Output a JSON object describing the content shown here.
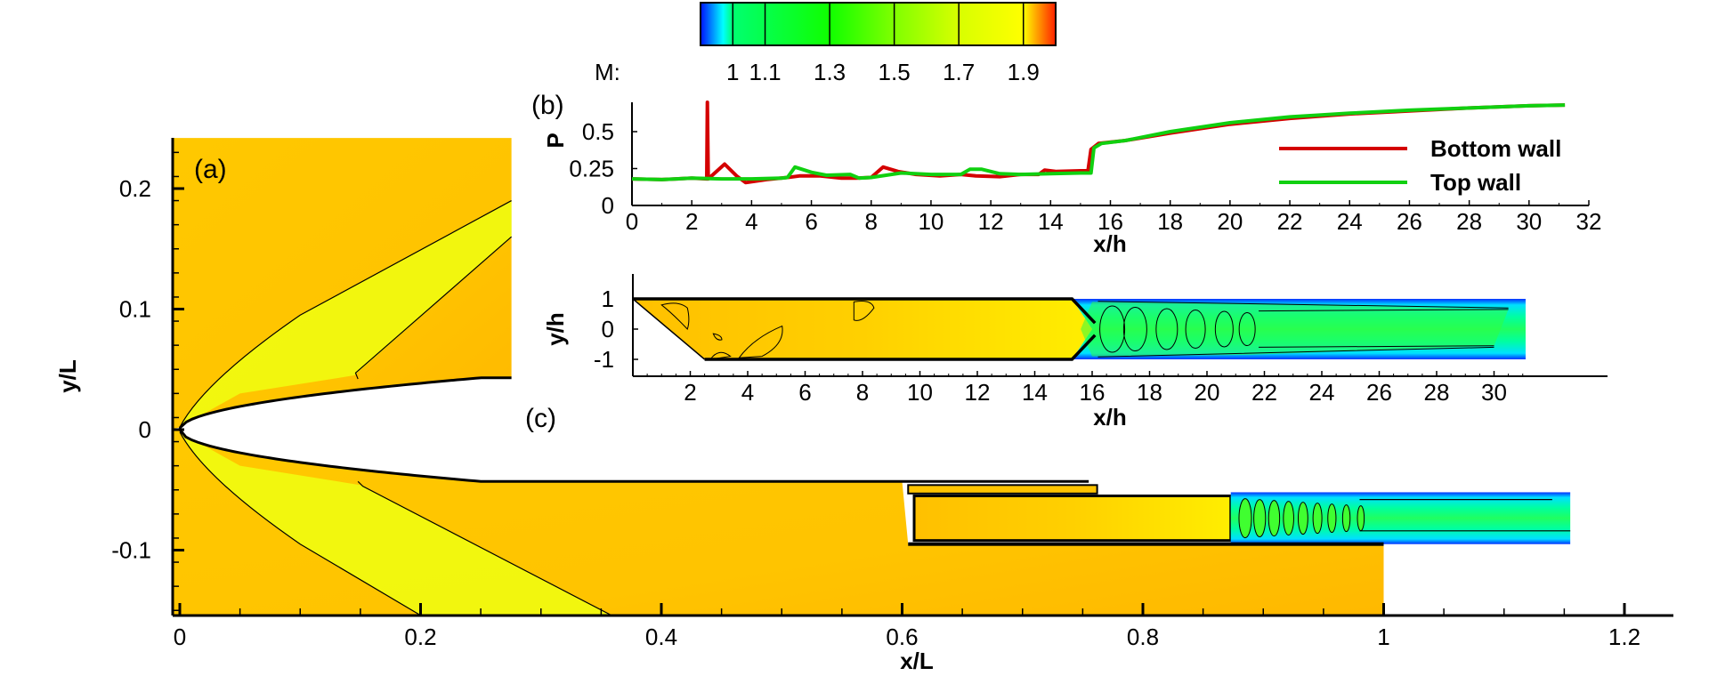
{
  "figure": {
    "colorbar": {
      "variable_label": "M:",
      "ticks": [
        "1",
        "1.1",
        "1.3",
        "1.5",
        "1.7",
        "1.9"
      ],
      "tick_values": [
        1.0,
        1.1,
        1.3,
        1.5,
        1.7,
        1.9
      ],
      "range": [
        0.9,
        2.0
      ],
      "stops": [
        {
          "value": 0.9,
          "color": "#0010ff"
        },
        {
          "value": 0.97,
          "color": "#00ffff"
        },
        {
          "value": 1.0,
          "color": "#00ff70"
        },
        {
          "value": 1.3,
          "color": "#10ff00"
        },
        {
          "value": 1.5,
          "color": "#80ff00"
        },
        {
          "value": 1.7,
          "color": "#d8ff00"
        },
        {
          "value": 1.9,
          "color": "#ffff00"
        },
        {
          "value": 2.0,
          "color": "#ff2000"
        }
      ]
    },
    "panel_a": {
      "label": "(a)",
      "xlabel": "x/L",
      "ylabel": "y/L",
      "xticks": [
        "0",
        "0.2",
        "0.4",
        "0.6",
        "0.8",
        "1",
        "1.2"
      ],
      "xtick_values": [
        0,
        0.2,
        0.4,
        0.6,
        0.8,
        1.0,
        1.2
      ],
      "yticks": [
        "0.2",
        "0.1",
        "0",
        "-0.1"
      ],
      "ytick_values": [
        0.2,
        0.1,
        0,
        -0.1
      ],
      "xlim": [
        -0.007,
        1.24
      ],
      "ylim": [
        -0.153,
        0.242
      ],
      "colors": {
        "freestream": "#ffc800",
        "compression": "#ffaa00",
        "expansion": "#e8ff00",
        "jet_core": "#30ff30",
        "jet_edge": "#00ffd0"
      }
    },
    "panel_c": {
      "label": "(c)",
      "xlabel": "x/h",
      "ylabel": "y/h",
      "xticks": [
        "2",
        "4",
        "6",
        "8",
        "10",
        "12",
        "14",
        "16",
        "18",
        "20",
        "22",
        "24",
        "26",
        "28",
        "30"
      ],
      "xtick_values": [
        2,
        4,
        6,
        8,
        10,
        12,
        14,
        16,
        18,
        20,
        22,
        24,
        26,
        28,
        30
      ],
      "yticks": [
        "1",
        "0",
        "-1"
      ],
      "ytick_values": [
        1,
        0,
        -1
      ],
      "xlim": [
        0,
        31.4
      ],
      "ylim": [
        -1.55,
        1.8
      ]
    }
  },
  "chart_data": {
    "type": "line",
    "title": "(b)",
    "xlabel": "x/h",
    "ylabel": "P",
    "xlim": [
      0,
      32
    ],
    "ylim": [
      0,
      0.7
    ],
    "xticks": [
      "0",
      "2",
      "4",
      "6",
      "8",
      "10",
      "12",
      "14",
      "16",
      "18",
      "20",
      "22",
      "24",
      "26",
      "28",
      "30",
      "32"
    ],
    "yticks": [
      "0",
      "0.25",
      "0.5"
    ],
    "ytick_values": [
      0,
      0.25,
      0.5
    ],
    "grid": false,
    "legend_position": "right",
    "series": [
      {
        "name": "Bottom wall",
        "color": "#d40000",
        "x": [
          0,
          1,
          2,
          2.5,
          2.52,
          2.55,
          3.1,
          3.5,
          3.8,
          4.5,
          5.2,
          5.6,
          6.3,
          7.0,
          7.5,
          8.0,
          8.4,
          8.9,
          9.5,
          10.3,
          11.0,
          11.5,
          12.3,
          13.0,
          13.6,
          13.8,
          14.2,
          15.0,
          15.25,
          15.35,
          15.6,
          16.5,
          18,
          20,
          22,
          24,
          26,
          28,
          30,
          31.2
        ],
        "y": [
          0.18,
          0.175,
          0.185,
          0.18,
          0.72,
          0.18,
          0.28,
          0.2,
          0.155,
          0.175,
          0.19,
          0.2,
          0.2,
          0.185,
          0.185,
          0.19,
          0.26,
          0.23,
          0.21,
          0.2,
          0.21,
          0.2,
          0.195,
          0.21,
          0.21,
          0.24,
          0.23,
          0.235,
          0.235,
          0.38,
          0.42,
          0.44,
          0.49,
          0.55,
          0.59,
          0.62,
          0.64,
          0.66,
          0.675,
          0.68
        ]
      },
      {
        "name": "Top wall",
        "color": "#10d010",
        "x": [
          0,
          1,
          2,
          3,
          4,
          5.0,
          5.2,
          5.45,
          6.0,
          6.5,
          7.3,
          7.6,
          8.0,
          8.5,
          9.0,
          10.0,
          11.0,
          11.3,
          11.7,
          12.3,
          13.0,
          14.0,
          15.0,
          15.35,
          15.45,
          15.7,
          16.5,
          18,
          20,
          22,
          24,
          26,
          28,
          30,
          31.2
        ],
        "y": [
          0.18,
          0.175,
          0.185,
          0.18,
          0.18,
          0.185,
          0.19,
          0.26,
          0.225,
          0.205,
          0.21,
          0.185,
          0.19,
          0.205,
          0.22,
          0.21,
          0.21,
          0.245,
          0.245,
          0.215,
          0.21,
          0.215,
          0.22,
          0.22,
          0.39,
          0.42,
          0.44,
          0.5,
          0.56,
          0.6,
          0.625,
          0.645,
          0.66,
          0.675,
          0.68
        ]
      }
    ]
  }
}
